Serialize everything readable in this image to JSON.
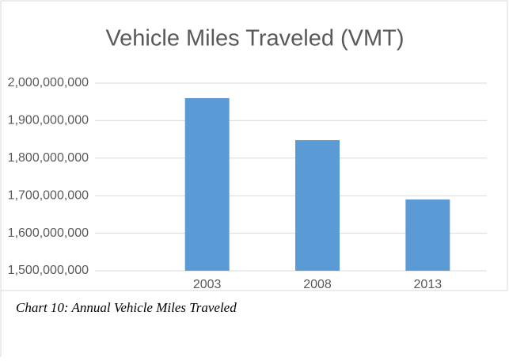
{
  "chart_data": {
    "type": "bar",
    "title": "Vehicle Miles Traveled (VMT)",
    "categories": [
      "2003",
      "2008",
      "2013"
    ],
    "values": [
      1960000000,
      1848000000,
      1690000000
    ],
    "color": "#5b9bd5",
    "ylim": [
      1500000000,
      2000000000
    ],
    "yticks": [
      {
        "value": 1500000000,
        "label": "1,500,000,000"
      },
      {
        "value": 1600000000,
        "label": "1,600,000,000"
      },
      {
        "value": 1700000000,
        "label": "1,700,000,000"
      },
      {
        "value": 1800000000,
        "label": "1,800,000,000"
      },
      {
        "value": 1900000000,
        "label": "1,900,000,000"
      },
      {
        "value": 2000000000,
        "label": "2,000,000,000"
      }
    ],
    "grid": true
  },
  "caption": "Chart 10: Annual Vehicle Miles Traveled"
}
